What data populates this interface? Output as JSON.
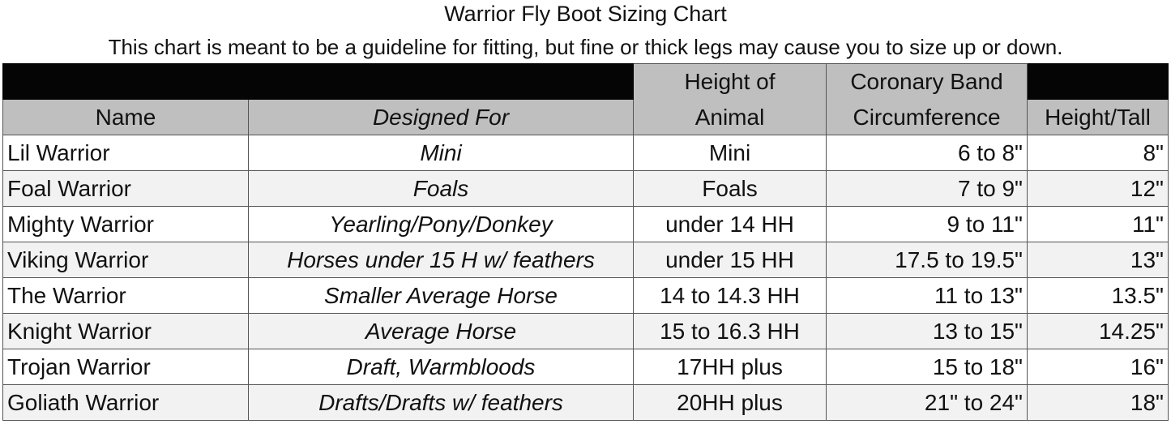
{
  "title": "Warrior Fly Boot Sizing Chart",
  "subtitle": "This chart is meant to be a guideline for fitting, but fine or thick legs may cause you to size up or down.",
  "colors": {
    "header_black": "#050505",
    "header_gray": "#bfbfbf",
    "row_alt": "#f2f2f2"
  },
  "table": {
    "headers": {
      "name": "Name",
      "designed_for": "Designed For",
      "height_of_animal_line1": "Height of",
      "height_of_animal_line2": "Animal",
      "coronary_line1": "Coronary Band",
      "coronary_line2": "Circumference",
      "height_tall": "Height/Tall"
    },
    "rows": [
      {
        "name": "Lil Warrior",
        "designed_for": "Mini",
        "animal_height": "Mini",
        "coronary": "6 to 8\"",
        "boot_height": "8\""
      },
      {
        "name": "Foal Warrior",
        "designed_for": "Foals",
        "animal_height": "Foals",
        "coronary": "7 to 9\"",
        "boot_height": "12\""
      },
      {
        "name": "Mighty Warrior",
        "designed_for": "Yearling/Pony/Donkey",
        "animal_height": "under 14 HH",
        "coronary": "9 to 11\"",
        "boot_height": "11\""
      },
      {
        "name": "Viking Warrior",
        "designed_for": "Horses under 15 H w/ feathers",
        "animal_height": "under 15 HH",
        "coronary": "17.5 to  19.5\"",
        "boot_height": "13\""
      },
      {
        "name": "The Warrior",
        "designed_for": "Smaller Average Horse",
        "animal_height": "14 to 14.3 HH",
        "coronary": "11 to 13\"",
        "boot_height": "13.5\""
      },
      {
        "name": "Knight Warrior",
        "designed_for": "Average Horse",
        "animal_height": "15 to 16.3 HH",
        "coronary": "13 to 15\"",
        "boot_height": "14.25\""
      },
      {
        "name": "Trojan Warrior",
        "designed_for": "Draft, Warmbloods",
        "animal_height": "17HH plus",
        "coronary": "15 to 18\"",
        "boot_height": "16\""
      },
      {
        "name": "Goliath Warrior",
        "designed_for": "Drafts/Drafts w/ feathers",
        "animal_height": "20HH plus",
        "coronary": "21\" to 24\"",
        "boot_height": "18\""
      }
    ]
  }
}
